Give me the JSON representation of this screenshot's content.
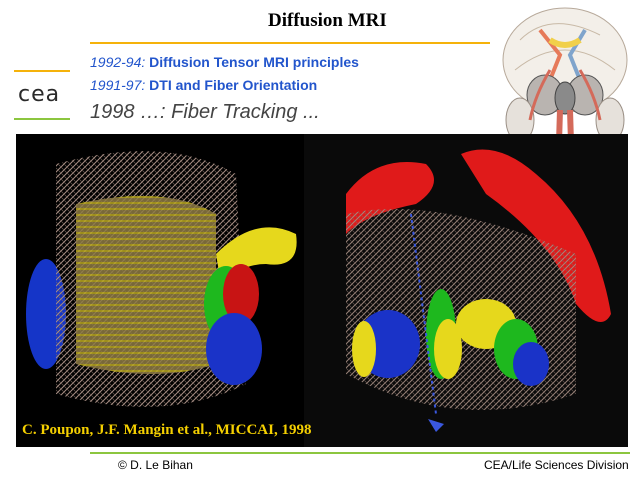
{
  "slide": {
    "title": "Diffusion MRI",
    "logo_text": "cea",
    "bullets": [
      {
        "year": "1992-94:",
        "text": "Diffusion Tensor MRI principles"
      },
      {
        "year": "1991-97:",
        "text": "DTI and Fiber Orientation"
      }
    ],
    "subtitle": "1998 …: Fiber Tracking ...",
    "caption": "C. Poupon, J.F. Mangin et al., MICCAI, 1998",
    "footer_left": "© D. Le Bihan",
    "footer_right": "CEA/Life Sciences Division"
  },
  "colors": {
    "title_rule": "#f5b20a",
    "footer_rule": "#8cc63f",
    "bullet_blue": "#2255cc",
    "caption_yellow": "#f5d000"
  }
}
